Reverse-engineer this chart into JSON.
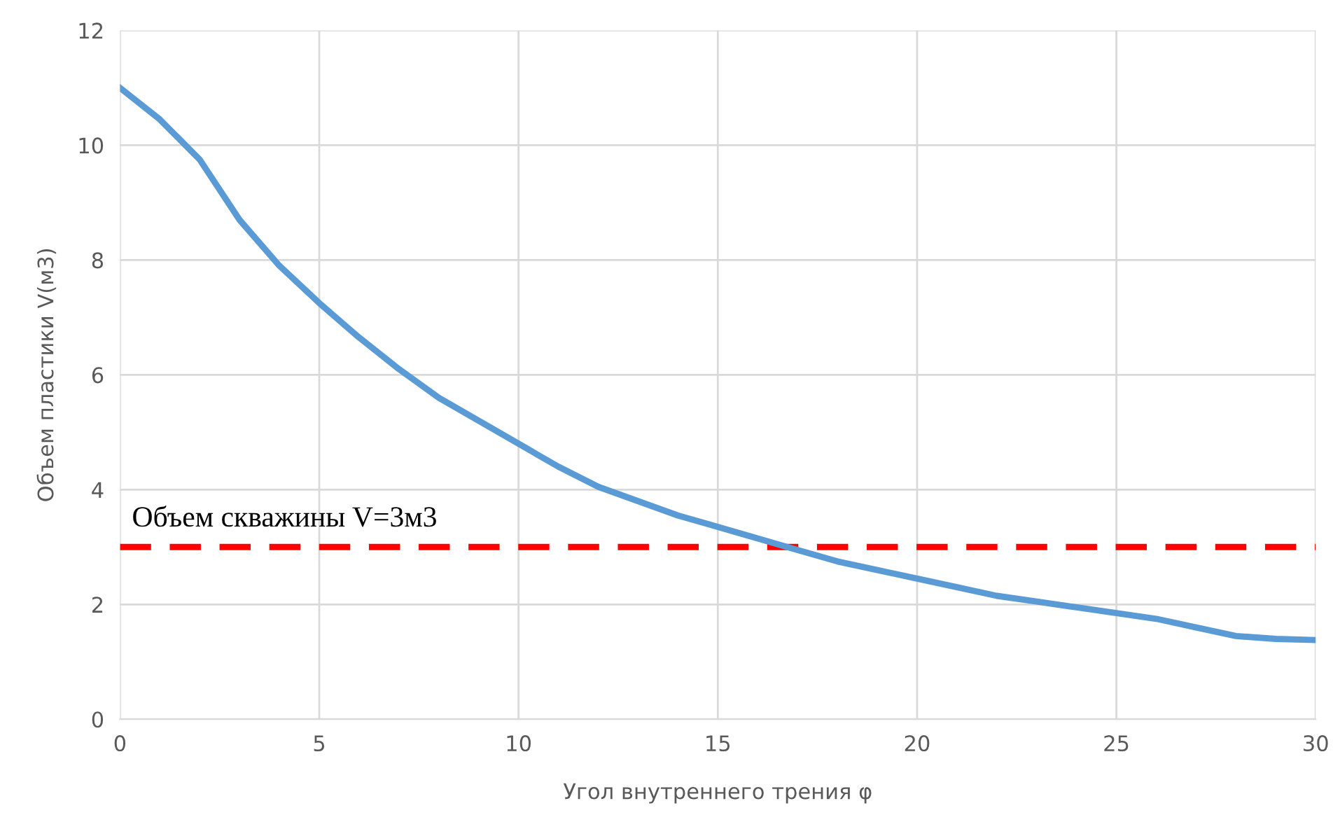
{
  "chart_data": {
    "type": "line",
    "xlabel": "Угол внутреннего трения φ",
    "ylabel": "Объем пластики V(м3)",
    "x": [
      0,
      1,
      2,
      3,
      4,
      5,
      6,
      7,
      8,
      9,
      10,
      11,
      12,
      13,
      14,
      15,
      16,
      17,
      18,
      19,
      20,
      21,
      22,
      23,
      24,
      25,
      26,
      27,
      28,
      29,
      30
    ],
    "series": [
      {
        "color": "#5b9bd5",
        "values": [
          11.0,
          10.45,
          9.75,
          8.7,
          7.9,
          7.25,
          6.65,
          6.1,
          5.6,
          5.2,
          4.8,
          4.4,
          4.05,
          3.8,
          3.55,
          3.35,
          3.15,
          2.95,
          2.75,
          2.6,
          2.45,
          2.3,
          2.15,
          2.05,
          1.95,
          1.85,
          1.75,
          1.6,
          1.45,
          1.4,
          1.38
        ]
      }
    ],
    "xlim": [
      0,
      30
    ],
    "xticks": [
      0,
      5,
      10,
      15,
      20,
      25,
      30
    ],
    "ylim": [
      0,
      12
    ],
    "yticks": [
      0,
      2,
      4,
      6,
      8,
      10,
      12
    ],
    "grid": true,
    "legend": false,
    "marker": "none",
    "line_style": "solid",
    "ref_lines": [
      {
        "axis": "y",
        "value": 3,
        "label": "Объем скважины V=3м3",
        "color": "#ff0000",
        "line_style": "dashed"
      }
    ]
  }
}
